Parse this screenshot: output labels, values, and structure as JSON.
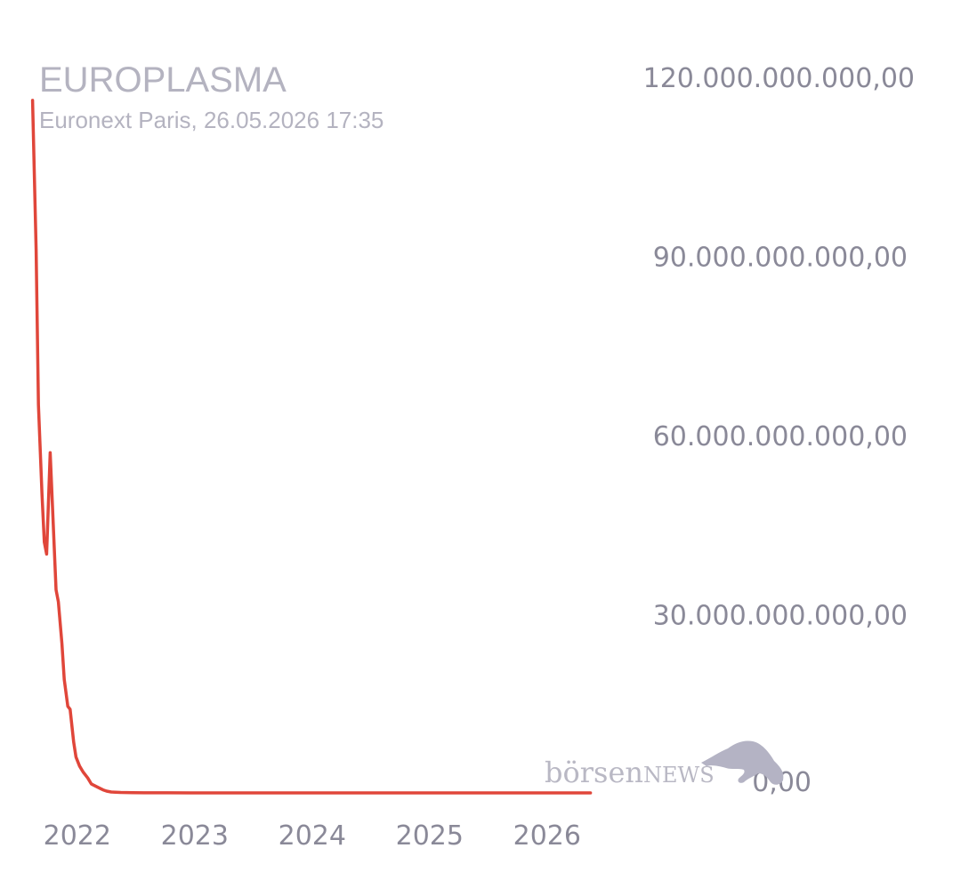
{
  "header": {
    "title": "EUROPLASMA",
    "subtitle": "Euronext Paris, 26.05.2026 17:35"
  },
  "watermark": {
    "brand_part1": "börsen",
    "brand_part2": "NEWS",
    "icon": "bull-icon"
  },
  "colors": {
    "line": "#e0463a",
    "text_muted": "#b4b3c0",
    "tick": "#8a8998",
    "watermark": "#b9b8c4"
  },
  "chart_data": {
    "type": "line",
    "title": "EUROPLASMA",
    "subtitle": "Euronext Paris, 26.05.2026 17:35",
    "xlabel": "",
    "ylabel": "",
    "x_ticks": [
      2022,
      2023,
      2024,
      2025,
      2026
    ],
    "y_ticks": [
      "0,00",
      "30.000.000.000,00",
      "60.000.000.000,00",
      "90.000.000.000,00",
      "120.000.000.000,00"
    ],
    "ylim": [
      0,
      120000000000
    ],
    "xlim": [
      2021.6,
      2026.6
    ],
    "y_axis_position": "right",
    "grid": false,
    "legend": "none",
    "series": [
      {
        "x": [
          2021.65,
          2021.68,
          2021.7,
          2021.73,
          2021.75,
          2021.77,
          2021.8,
          2021.85,
          2021.87,
          2021.9,
          2021.92,
          2021.95,
          2021.97,
          2022.0,
          2022.02,
          2022.05,
          2022.08,
          2022.12,
          2022.15,
          2022.2,
          2022.25,
          2022.28,
          2022.32,
          2022.4,
          2022.5,
          2022.6,
          2022.8,
          2023.0,
          2023.5,
          2024.0,
          2024.5,
          2025.0,
          2025.5,
          2026.0,
          2026.4
        ],
        "y": [
          116000000000,
          91000000000,
          65000000000,
          50000000000,
          42000000000,
          40000000000,
          57000000000,
          34000000000,
          32000000000,
          25000000000,
          19000000000,
          14500000000,
          14000000000,
          8500000000,
          6000000000,
          4500000000,
          3500000000,
          2500000000,
          1500000000,
          1000000000,
          500000000,
          300000000,
          150000000,
          80000000,
          40000000,
          20000000,
          10000000,
          5000000,
          3000000,
          2000000,
          1000000,
          500000,
          300000,
          200000,
          100000
        ]
      }
    ]
  }
}
